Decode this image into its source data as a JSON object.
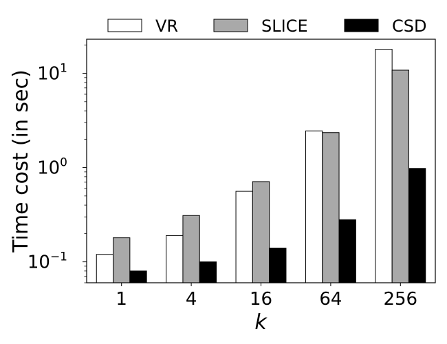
{
  "chart_data": {
    "type": "bar",
    "title": "",
    "xlabel": "k",
    "ylabel": "Time cost (in sec)",
    "yscale": "log",
    "ylim": [
      0.06,
      23
    ],
    "categories": [
      "1",
      "4",
      "16",
      "64",
      "256"
    ],
    "series": [
      {
        "name": "VR",
        "color": "#ffffff",
        "values": [
          0.12,
          0.19,
          0.56,
          2.45,
          18.0
        ]
      },
      {
        "name": "SLICE",
        "color": "#a9a9a9",
        "values": [
          0.18,
          0.31,
          0.71,
          2.35,
          10.8
        ]
      },
      {
        "name": "CSD",
        "color": "#000000",
        "values": [
          0.08,
          0.1,
          0.14,
          0.28,
          0.98
        ]
      }
    ],
    "y_ticks": [
      {
        "value": 0.1,
        "base": "10",
        "exp": "−1"
      },
      {
        "value": 1,
        "base": "10",
        "exp": "0"
      },
      {
        "value": 10,
        "base": "10",
        "exp": "1"
      }
    ],
    "legend": {
      "position": "top",
      "orientation": "horizontal"
    },
    "grid": false
  }
}
